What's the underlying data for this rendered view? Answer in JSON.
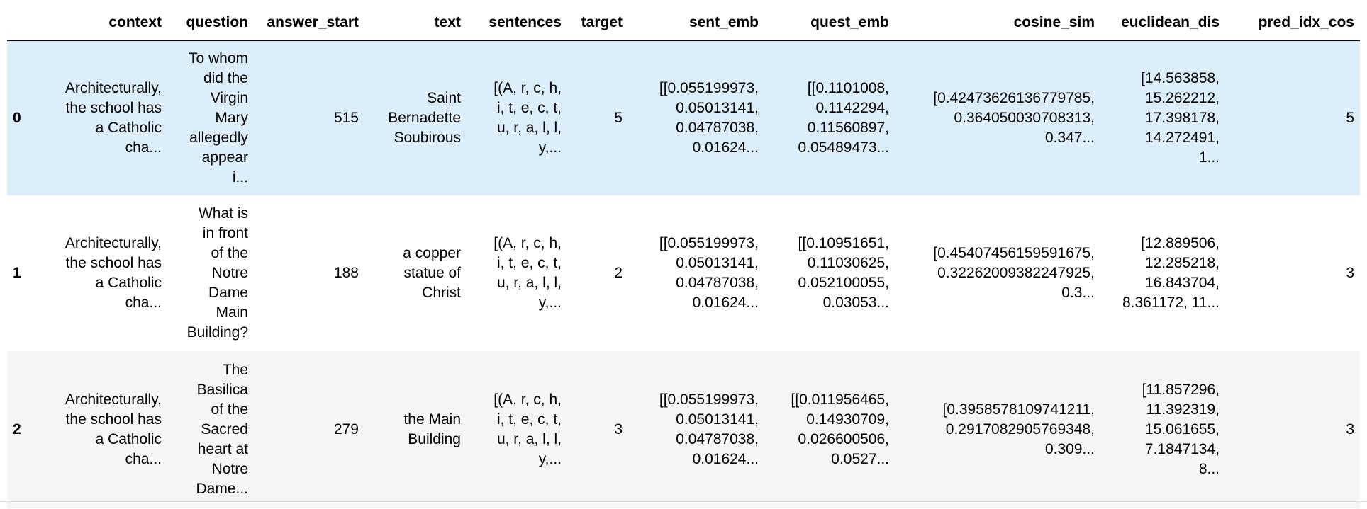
{
  "columns": [
    "context",
    "question",
    "answer_start",
    "text",
    "sentences",
    "target",
    "sent_emb",
    "quest_emb",
    "cosine_sim",
    "euclidean_dis",
    "pred_idx_cos"
  ],
  "rows": [
    {
      "index": "0",
      "context": [
        "Architecturally,",
        "the school has",
        "a Catholic",
        "cha..."
      ],
      "question": [
        "To whom",
        "did the",
        "Virgin",
        "Mary",
        "allegedly",
        "appear",
        "i..."
      ],
      "answer_start": "515",
      "text": [
        "Saint",
        "Bernadette",
        "Soubirous"
      ],
      "sentences": [
        "[(A, r, c, h,",
        "i, t, e, c, t,",
        "u, r, a, l, l,",
        "y,..."
      ],
      "target": "5",
      "sent_emb": [
        "[[0.055199973,",
        "0.05013141,",
        "0.04787038,",
        "0.01624..."
      ],
      "quest_emb": [
        "[[0.1101008,",
        "0.1142294,",
        "0.11560897,",
        "0.05489473..."
      ],
      "cosine_sim": [
        "[0.42473626136779785,",
        "0.364050030708313,",
        "0.347..."
      ],
      "euclidean_dis": [
        "[14.563858,",
        "15.262212,",
        "17.398178,",
        "14.272491,",
        "1..."
      ],
      "pred_idx_cos": "5"
    },
    {
      "index": "1",
      "context": [
        "Architecturally,",
        "the school has",
        "a Catholic",
        "cha..."
      ],
      "question": [
        "What is",
        "in front",
        "of the",
        "Notre",
        "Dame",
        "Main",
        "Building?"
      ],
      "answer_start": "188",
      "text": [
        "a copper",
        "statue of",
        "Christ"
      ],
      "sentences": [
        "[(A, r, c, h,",
        "i, t, e, c, t,",
        "u, r, a, l, l,",
        "y,..."
      ],
      "target": "2",
      "sent_emb": [
        "[[0.055199973,",
        "0.05013141,",
        "0.04787038,",
        "0.01624..."
      ],
      "quest_emb": [
        "[[0.10951651,",
        "0.11030625,",
        "0.052100055,",
        "0.03053..."
      ],
      "cosine_sim": [
        "[0.45407456159591675,",
        "0.32262009382247925,",
        "0.3..."
      ],
      "euclidean_dis": [
        "[12.889506,",
        "12.285218,",
        "16.843704,",
        "8.361172, 11..."
      ],
      "pred_idx_cos": "3"
    },
    {
      "index": "2",
      "context": [
        "Architecturally,",
        "the school has",
        "a Catholic",
        "cha..."
      ],
      "question": [
        "The",
        "Basilica",
        "of the",
        "Sacred",
        "heart at",
        "Notre",
        "Dame..."
      ],
      "answer_start": "279",
      "text": [
        "the Main",
        "Building"
      ],
      "sentences": [
        "[(A, r, c, h,",
        "i, t, e, c, t,",
        "u, r, a, l, l,",
        "y,..."
      ],
      "target": "3",
      "sent_emb": [
        "[[0.055199973,",
        "0.05013141,",
        "0.04787038,",
        "0.01624..."
      ],
      "quest_emb": [
        "[[0.011956465,",
        "0.14930709,",
        "0.026600506,",
        "0.0527..."
      ],
      "cosine_sim": [
        "[0.3958578109741211,",
        "0.2917082905769348,",
        "0.309..."
      ],
      "euclidean_dis": [
        "[11.857296,",
        "11.392319,",
        "15.061655,",
        "7.1847134,",
        "8..."
      ],
      "pred_idx_cos": "3"
    }
  ]
}
